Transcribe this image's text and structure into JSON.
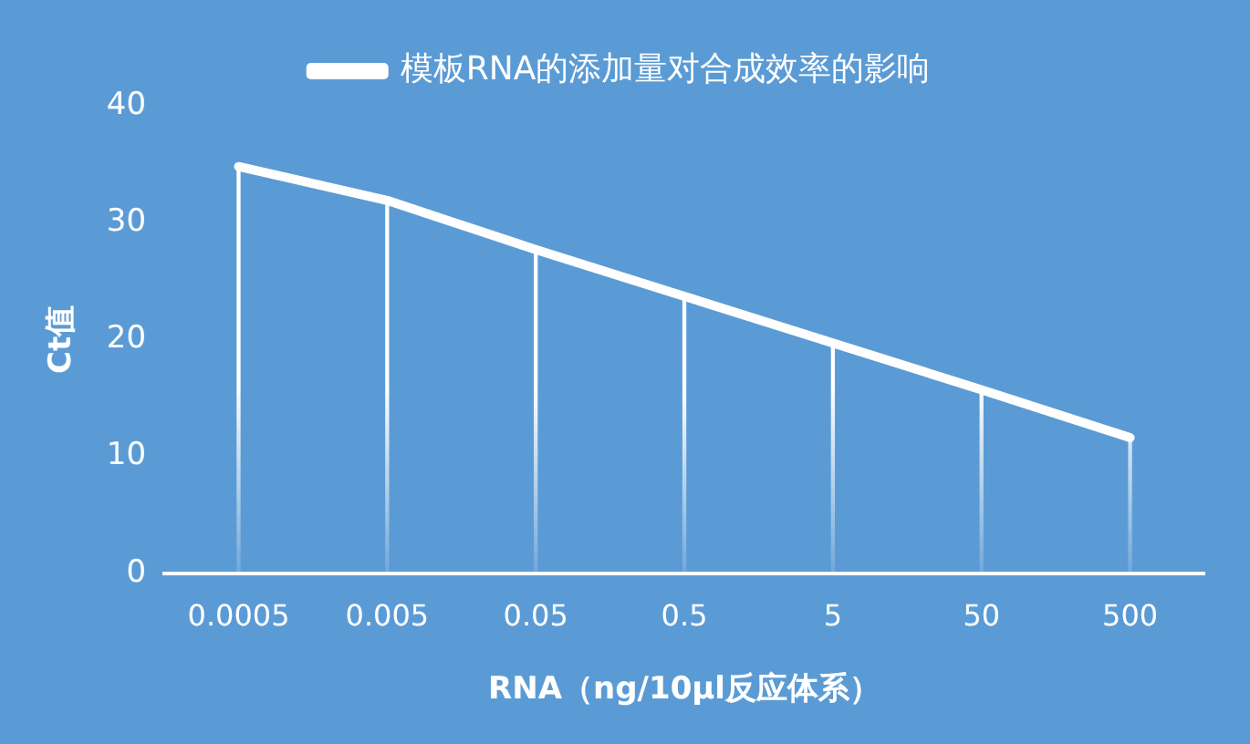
{
  "chart_data": {
    "type": "line",
    "xlabel": "RNA（ng/10μl反应体系）",
    "ylabel": "Ct值",
    "categories": [
      "0.0005",
      "0.005",
      "0.05",
      "0.5",
      "5",
      "50",
      "500"
    ],
    "series": [
      {
        "name": "模板RNA的添加量对合成效率的影响",
        "color": "#ffffff",
        "values": [
          34.8,
          31.9,
          27.7,
          23.7,
          19.7,
          15.7,
          11.6
        ]
      },
      {
        "type": "bar",
        "color": "#ffffff",
        "values": [
          34.8,
          31.9,
          27.7,
          23.7,
          19.7,
          15.7,
          11.6
        ]
      }
    ],
    "ylim": [
      0,
      40
    ],
    "yticks": [
      0,
      10,
      20,
      30,
      40
    ],
    "grid": false,
    "legend": "top",
    "marker": "none",
    "line_style": "solid"
  }
}
